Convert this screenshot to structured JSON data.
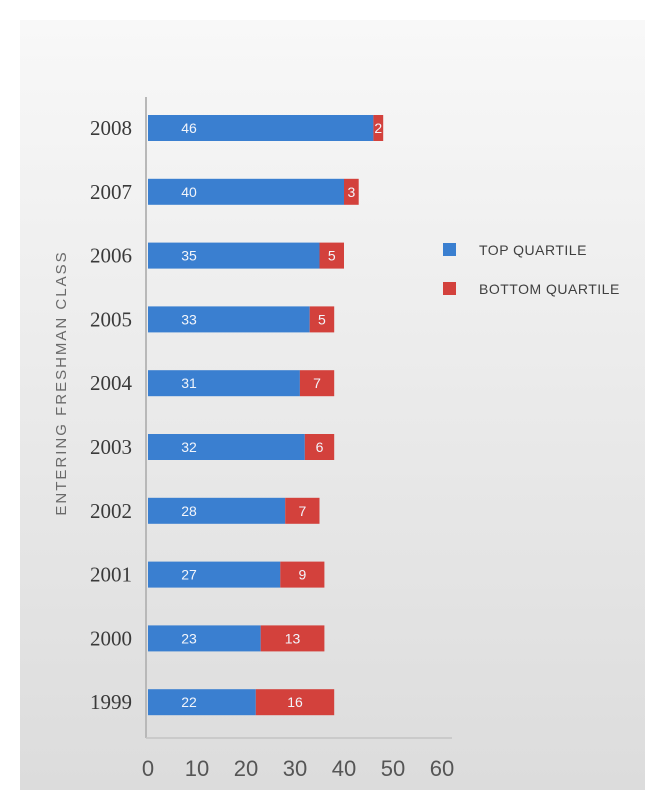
{
  "chart_data": {
    "type": "bar",
    "orientation": "horizontal",
    "stacked": true,
    "categories": [
      "2008",
      "2007",
      "2006",
      "2005",
      "2004",
      "2003",
      "2002",
      "2001",
      "2000",
      "1999"
    ],
    "series": [
      {
        "name": "TOP QUARTILE",
        "values": [
          46,
          40,
          35,
          33,
          31,
          32,
          28,
          27,
          23,
          22
        ]
      },
      {
        "name": "BOTTOM QUARTILE",
        "values": [
          2,
          3,
          5,
          5,
          7,
          6,
          7,
          9,
          13,
          16
        ]
      }
    ],
    "title": "",
    "xlabel": "",
    "ylabel": "ENTERING FRESHMAN CLASS",
    "xlim": [
      0,
      60
    ],
    "xticks": [
      "0",
      "10",
      "20",
      "30",
      "40",
      "50",
      "60"
    ],
    "grid": false,
    "legend_position": "right",
    "colors": {
      "top": "#3a7fd0",
      "bottom": "#d3413c",
      "axis": "#b5b5b5"
    }
  }
}
